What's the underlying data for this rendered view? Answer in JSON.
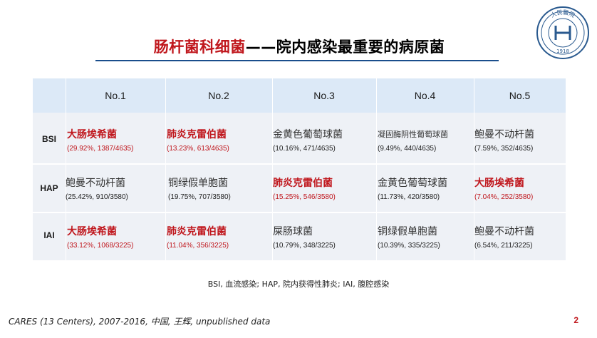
{
  "slide": {
    "title_red": "肠杆菌科细菌",
    "title_rest": "——院内感染最重要的病原菌",
    "logo_text": "人民醫院",
    "logo_year": "1918",
    "page_number": "2"
  },
  "table": {
    "columns": [
      "",
      "No.1",
      "No.2",
      "No.3",
      "No.4",
      "No.5"
    ],
    "rows": [
      {
        "label": "BSI",
        "cells": [
          {
            "organism": "大肠埃希菌",
            "stat": "(29.92%, 1387/4635)",
            "highlight": true
          },
          {
            "organism": "肺炎克雷伯菌",
            "stat": "(13.23%, 613/4635)",
            "highlight": true
          },
          {
            "organism": "金黄色葡萄球菌",
            "stat": "(10.16%, 471/4635)",
            "highlight": false
          },
          {
            "organism": "凝固酶阴性葡萄球菌",
            "stat": "(9.49%, 440/4635)",
            "highlight": false
          },
          {
            "organism": "鲍曼不动杆菌",
            "stat": "(7.59%, 352/4635)",
            "highlight": false
          }
        ]
      },
      {
        "label": "HAP",
        "cells": [
          {
            "organism": "鲍曼不动杆菌",
            "stat": "(25.42%, 910/3580)",
            "highlight": false
          },
          {
            "organism": "铜绿假单胞菌",
            "stat": "(19.75%, 707/3580)",
            "highlight": false
          },
          {
            "organism": "肺炎克雷伯菌",
            "stat": "(15.25%, 546/3580)",
            "highlight": true
          },
          {
            "organism": "金黄色葡萄球菌",
            "stat": "(11.73%, 420/3580)",
            "highlight": false
          },
          {
            "organism": "大肠埃希菌",
            "stat": "(7.04%, 252/3580)",
            "highlight": true
          }
        ]
      },
      {
        "label": "IAI",
        "cells": [
          {
            "organism": "大肠埃希菌",
            "stat": "(33.12%, 1068/3225)",
            "highlight": true
          },
          {
            "organism": "肺炎克雷伯菌",
            "stat": "(11.04%, 356/3225)",
            "highlight": true
          },
          {
            "organism": "屎肠球菌",
            "stat": "(10.79%, 348/3225)",
            "highlight": false
          },
          {
            "organism": "铜绿假单胞菌",
            "stat": "(10.39%, 335/3225)",
            "highlight": false
          },
          {
            "organism": "鲍曼不动杆菌",
            "stat": "(6.54%, 211/3225)",
            "highlight": false
          }
        ]
      }
    ]
  },
  "footnote": "BSI, 血流感染; HAP, 院内获得性肺炎; IAI, 腹腔感染",
  "source": "CARES (13 Centers), 2007-2016, 中国, 王辉, unpublished data",
  "colors": {
    "accent_red": "#c0171d",
    "header_bg": "#dce9f7",
    "body_bg": "#eef1f6",
    "rule_blue": "#1a4e8c"
  }
}
